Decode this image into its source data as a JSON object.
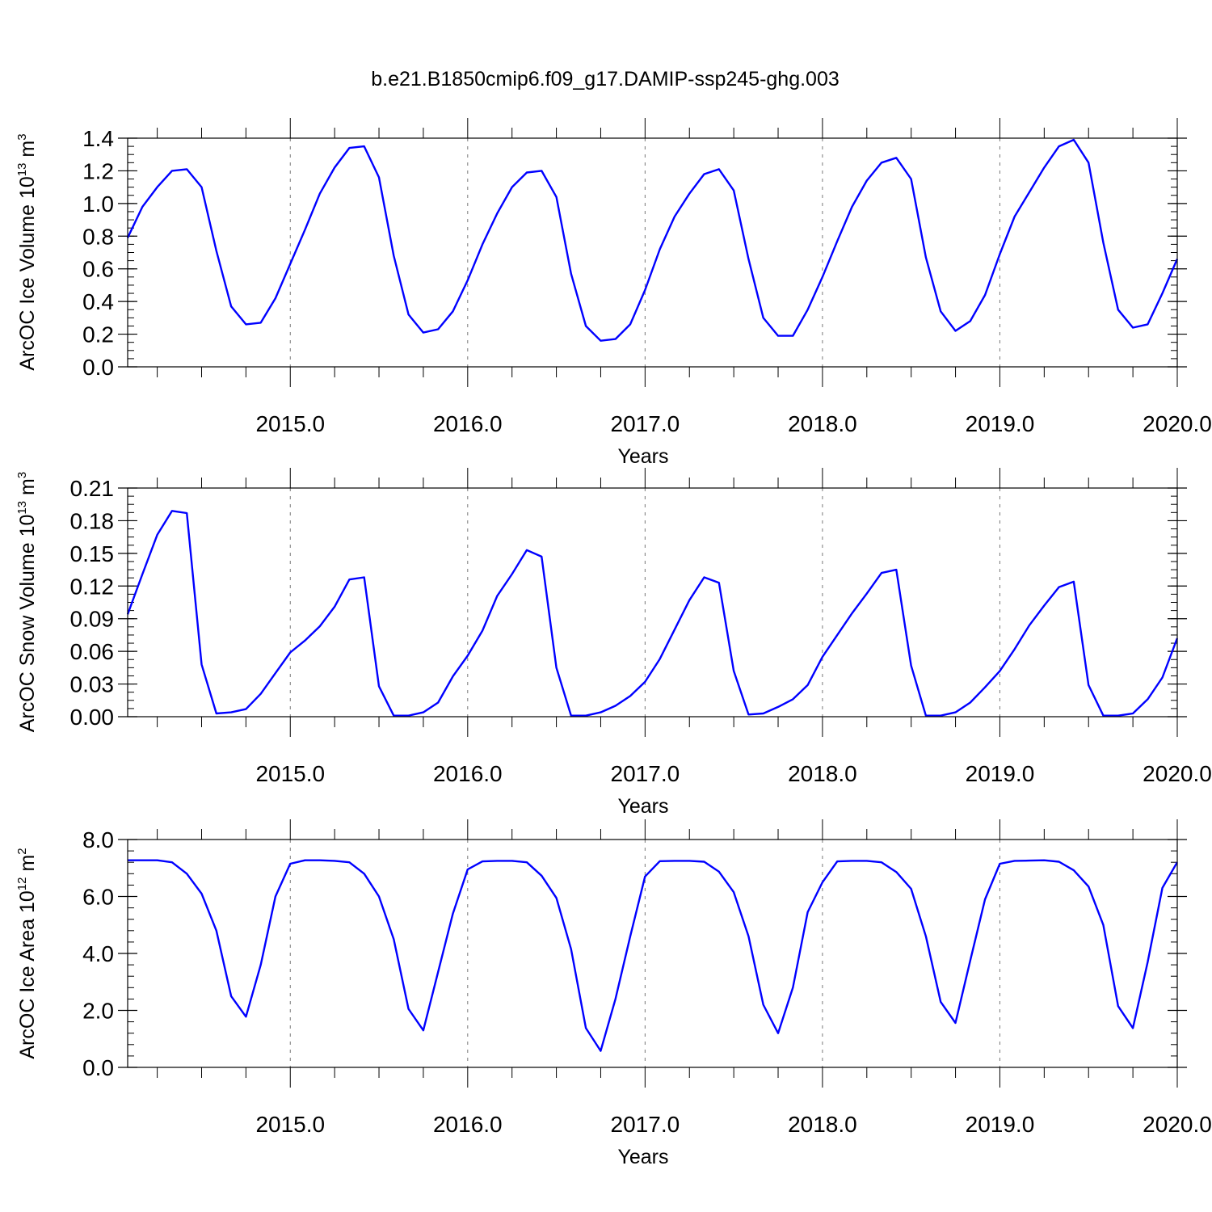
{
  "figure": {
    "title": "b.e21.B1850cmip6.f09_g17.DAMIP-ssp245-ghg.003",
    "line_color": "#0000ff",
    "grid_color": "#777777"
  },
  "chart_data": [
    {
      "type": "line",
      "ylabel_main": "ArcOC Ice Volume 10",
      "ylabel_exp": "13",
      "ylabel_unit": " m",
      "ylabel_unit_exp": "3",
      "xlabel": "Years",
      "xlim": [
        2014.0833,
        2020.0
      ],
      "ylim": [
        0.0,
        1.4
      ],
      "yticks": [
        0.0,
        0.2,
        0.4,
        0.6,
        0.8,
        1.0,
        1.2,
        1.4
      ],
      "ytick_labels": [
        "0.0",
        "0.2",
        "0.4",
        "0.6",
        "0.8",
        "1.0",
        "1.2",
        "1.4"
      ],
      "y_minor_step": 0.05,
      "xticks": [
        2015,
        2016,
        2017,
        2018,
        2019,
        2020
      ],
      "xtick_labels": [
        "2015.0",
        "2016.0",
        "2017.0",
        "2018.0",
        "2019.0",
        "2020.0"
      ],
      "x_start": 2014.0833,
      "x_step": 0.08333,
      "values": [
        0.79,
        0.98,
        1.1,
        1.2,
        1.21,
        1.1,
        0.71,
        0.37,
        0.26,
        0.27,
        0.42,
        0.63,
        0.84,
        1.06,
        1.22,
        1.34,
        1.35,
        1.16,
        0.68,
        0.32,
        0.21,
        0.23,
        0.34,
        0.53,
        0.75,
        0.94,
        1.1,
        1.19,
        1.2,
        1.04,
        0.57,
        0.25,
        0.16,
        0.17,
        0.26,
        0.47,
        0.72,
        0.92,
        1.06,
        1.18,
        1.21,
        1.08,
        0.66,
        0.3,
        0.19,
        0.19,
        0.35,
        0.55,
        0.77,
        0.98,
        1.14,
        1.25,
        1.28,
        1.15,
        0.67,
        0.34,
        0.22,
        0.28,
        0.44,
        0.69,
        0.92,
        1.07,
        1.22,
        1.35,
        1.39,
        1.25,
        0.76,
        0.35,
        0.24,
        0.26,
        0.45,
        0.66
      ]
    },
    {
      "type": "line",
      "ylabel_main": "ArcOC Snow Volume 10",
      "ylabel_exp": "13",
      "ylabel_unit": " m",
      "ylabel_unit_exp": "3",
      "xlabel": "Years",
      "xlim": [
        2014.0833,
        2020.0
      ],
      "ylim": [
        0.0,
        0.21
      ],
      "yticks": [
        0.0,
        0.03,
        0.06,
        0.09,
        0.12,
        0.15,
        0.18,
        0.21
      ],
      "ytick_labels": [
        "0.00",
        "0.03",
        "0.06",
        "0.09",
        "0.12",
        "0.15",
        "0.18",
        "0.21"
      ],
      "y_minor_step": 0.0075,
      "xticks": [
        2015,
        2016,
        2017,
        2018,
        2019,
        2020
      ],
      "xtick_labels": [
        "2015.0",
        "2016.0",
        "2017.0",
        "2018.0",
        "2019.0",
        "2020.0"
      ],
      "x_start": 2014.0833,
      "x_step": 0.08333,
      "values": [
        0.094,
        0.131,
        0.167,
        0.189,
        0.187,
        0.048,
        0.003,
        0.004,
        0.007,
        0.021,
        0.04,
        0.059,
        0.07,
        0.083,
        0.101,
        0.126,
        0.128,
        0.028,
        0.001,
        0.001,
        0.004,
        0.013,
        0.037,
        0.056,
        0.079,
        0.111,
        0.131,
        0.153,
        0.147,
        0.045,
        0.001,
        0.001,
        0.004,
        0.01,
        0.019,
        0.032,
        0.053,
        0.08,
        0.107,
        0.128,
        0.123,
        0.042,
        0.002,
        0.003,
        0.009,
        0.016,
        0.029,
        0.055,
        0.075,
        0.095,
        0.113,
        0.132,
        0.135,
        0.047,
        0.001,
        0.001,
        0.004,
        0.013,
        0.027,
        0.042,
        0.062,
        0.084,
        0.102,
        0.119,
        0.124,
        0.029,
        0.001,
        0.001,
        0.003,
        0.016,
        0.036,
        0.072
      ]
    },
    {
      "type": "line",
      "ylabel_main": "ArcOC Ice Area 10",
      "ylabel_exp": "12",
      "ylabel_unit": " m",
      "ylabel_unit_exp": "2",
      "xlabel": "Years",
      "xlim": [
        2014.0833,
        2020.0
      ],
      "ylim": [
        0.0,
        8.0
      ],
      "yticks": [
        0.0,
        2.0,
        4.0,
        6.0,
        8.0
      ],
      "ytick_labels": [
        "0.0",
        "2.0",
        "4.0",
        "6.0",
        "8.0"
      ],
      "y_minor_step": 0.4,
      "xticks": [
        2015,
        2016,
        2017,
        2018,
        2019,
        2020
      ],
      "xtick_labels": [
        "2015.0",
        "2016.0",
        "2017.0",
        "2018.0",
        "2019.0",
        "2020.0"
      ],
      "x_start": 2014.0833,
      "x_step": 0.08333,
      "values": [
        7.27,
        7.27,
        7.27,
        7.2,
        6.8,
        6.1,
        4.8,
        2.5,
        1.78,
        3.6,
        6.0,
        7.15,
        7.27,
        7.27,
        7.25,
        7.2,
        6.8,
        6.0,
        4.5,
        2.05,
        1.3,
        3.35,
        5.4,
        6.95,
        7.23,
        7.25,
        7.25,
        7.2,
        6.73,
        5.95,
        4.15,
        1.38,
        0.58,
        2.4,
        4.6,
        6.7,
        7.24,
        7.25,
        7.25,
        7.22,
        6.87,
        6.15,
        4.6,
        2.2,
        1.2,
        2.8,
        5.45,
        6.5,
        7.23,
        7.25,
        7.25,
        7.2,
        6.86,
        6.27,
        4.6,
        2.3,
        1.56,
        3.75,
        5.9,
        7.15,
        7.25,
        7.26,
        7.27,
        7.22,
        6.92,
        6.35,
        5.0,
        2.15,
        1.38,
        3.7,
        6.3,
        7.2
      ]
    }
  ]
}
